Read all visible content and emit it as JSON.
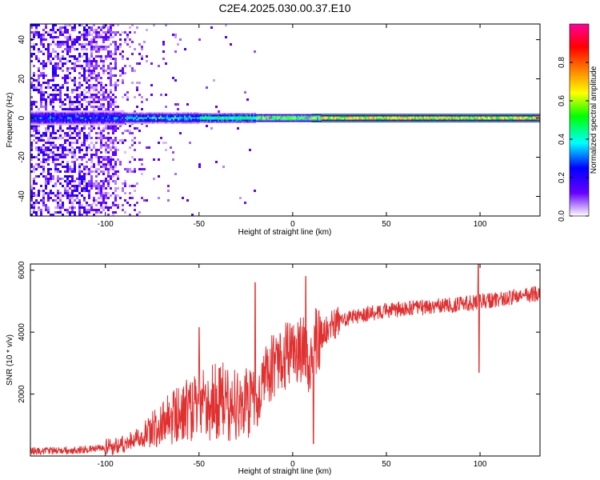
{
  "title": "C2E4.2025.030.00.37.E10",
  "chart_data": [
    {
      "type": "heatmap",
      "xlabel": "Height of straight line (km)",
      "ylabel": "Frequency (Hz)",
      "xlim": [
        -140,
        132
      ],
      "ylim": [
        -50,
        48
      ],
      "xticks": [
        -100,
        -50,
        0,
        50,
        100
      ],
      "yticks": [
        -40,
        -20,
        0,
        20,
        40
      ],
      "grid": false,
      "colorbar": {
        "label": "Normalized spectral amplitude",
        "range": [
          0,
          1
        ],
        "ticks": [
          "0.0",
          "0.2",
          "0.4",
          "0.6",
          "0.8"
        ],
        "colors": [
          "#ffffff",
          "#6600ff",
          "#0000ff",
          "#00ffff",
          "#00ff00",
          "#ffff00",
          "#ff8000",
          "#ff0000",
          "#ff0099"
        ]
      },
      "ridge_center_hz": 0,
      "ridge_line_color": "#008000"
    },
    {
      "type": "line",
      "xlabel": "Height of straight line (km)",
      "ylabel": "SNR (10 * v/v)",
      "xlim": [
        -140,
        132
      ],
      "ylim": [
        0,
        6200
      ],
      "xticks": [
        -100,
        -50,
        0,
        50,
        100
      ],
      "yticks": [
        2000,
        4000,
        6000
      ],
      "grid": false,
      "line_color": "#e03030",
      "series": [
        {
          "x": [
            -140,
            -120,
            -100,
            -90,
            -80,
            -70,
            -60,
            -50,
            -40,
            -30,
            -20,
            -15,
            -10,
            -5,
            0,
            5,
            10,
            12,
            20,
            30,
            40,
            50,
            60,
            70,
            80,
            90,
            97,
            99,
            101,
            110,
            120,
            132
          ],
          "values": [
            150,
            180,
            250,
            400,
            650,
            1000,
            1300,
            1500,
            1700,
            1600,
            1550,
            2600,
            2900,
            3200,
            3300,
            3500,
            3000,
            3700,
            4200,
            4450,
            4600,
            4700,
            4750,
            4800,
            4850,
            4900,
            4950,
            4950,
            5000,
            5050,
            5150,
            5250
          ]
        }
      ],
      "spikes": [
        {
          "x": -20,
          "y": 5600
        },
        {
          "x": -50,
          "y": 4150
        },
        {
          "x": 7,
          "y": 5800
        },
        {
          "x": 11,
          "y": 400
        },
        {
          "x": 99,
          "y": 6300
        },
        {
          "x": 99.5,
          "y": 2700
        }
      ]
    }
  ]
}
